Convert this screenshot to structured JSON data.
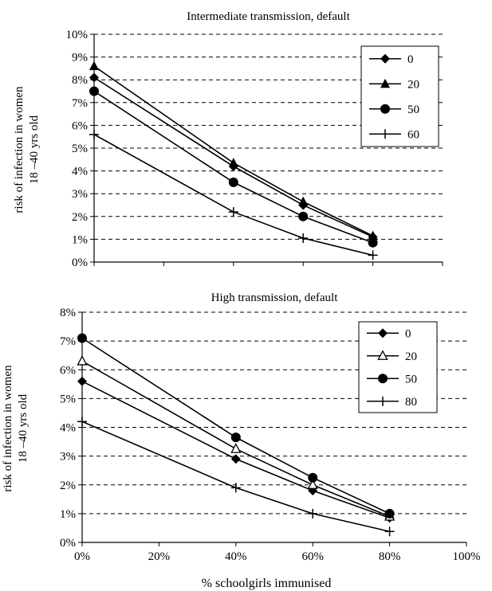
{
  "chart_data": [
    {
      "type": "line",
      "title": "Intermediate transmission, default",
      "xlabel": "",
      "ylabel": [
        "risk of infection in women",
        "18 –40 yrs old"
      ],
      "x": [
        0,
        40,
        60,
        80
      ],
      "xlim": [
        0,
        100
      ],
      "ylim": [
        0,
        10
      ],
      "yticks": [
        "0%",
        "1%",
        "2%",
        "3%",
        "4%",
        "5%",
        "6%",
        "7%",
        "8%",
        "9%",
        "10%"
      ],
      "grid": "horizontal-dashed",
      "legend": "top-right",
      "series": [
        {
          "name": "0",
          "marker": "diamond",
          "values": [
            8.1,
            4.2,
            2.5,
            1.1
          ]
        },
        {
          "name": "20",
          "marker": "triangle",
          "values": [
            8.6,
            4.35,
            2.65,
            1.15
          ]
        },
        {
          "name": "50",
          "marker": "circle",
          "values": [
            7.5,
            3.5,
            2.0,
            0.85
          ]
        },
        {
          "name": "60",
          "marker": "plus",
          "values": [
            5.6,
            2.2,
            1.05,
            0.3
          ]
        }
      ]
    },
    {
      "type": "line",
      "title": "High transmission, default",
      "xlabel": "% schoolgirls immunised",
      "ylabel": [
        "risk of infection in women",
        "18 –40 yrs old"
      ],
      "x": [
        0,
        40,
        60,
        80
      ],
      "xlim": [
        0,
        100
      ],
      "ylim": [
        0,
        8
      ],
      "xticks": [
        "0%",
        "20%",
        "40%",
        "60%",
        "80%",
        "100%"
      ],
      "yticks": [
        "0%",
        "1%",
        "2%",
        "3%",
        "4%",
        "5%",
        "6%",
        "7%",
        "8%"
      ],
      "grid": "horizontal-dashed",
      "legend": "top-right",
      "series": [
        {
          "name": "0",
          "marker": "diamond",
          "values": [
            5.6,
            2.9,
            1.8,
            0.85
          ]
        },
        {
          "name": "20",
          "marker": "open-triangle",
          "values": [
            6.3,
            3.25,
            2.0,
            0.9
          ]
        },
        {
          "name": "50",
          "marker": "circle",
          "values": [
            7.1,
            3.65,
            2.25,
            1.0
          ]
        },
        {
          "name": "80",
          "marker": "plus",
          "values": [
            4.2,
            1.9,
            1.0,
            0.38
          ]
        }
      ]
    }
  ]
}
